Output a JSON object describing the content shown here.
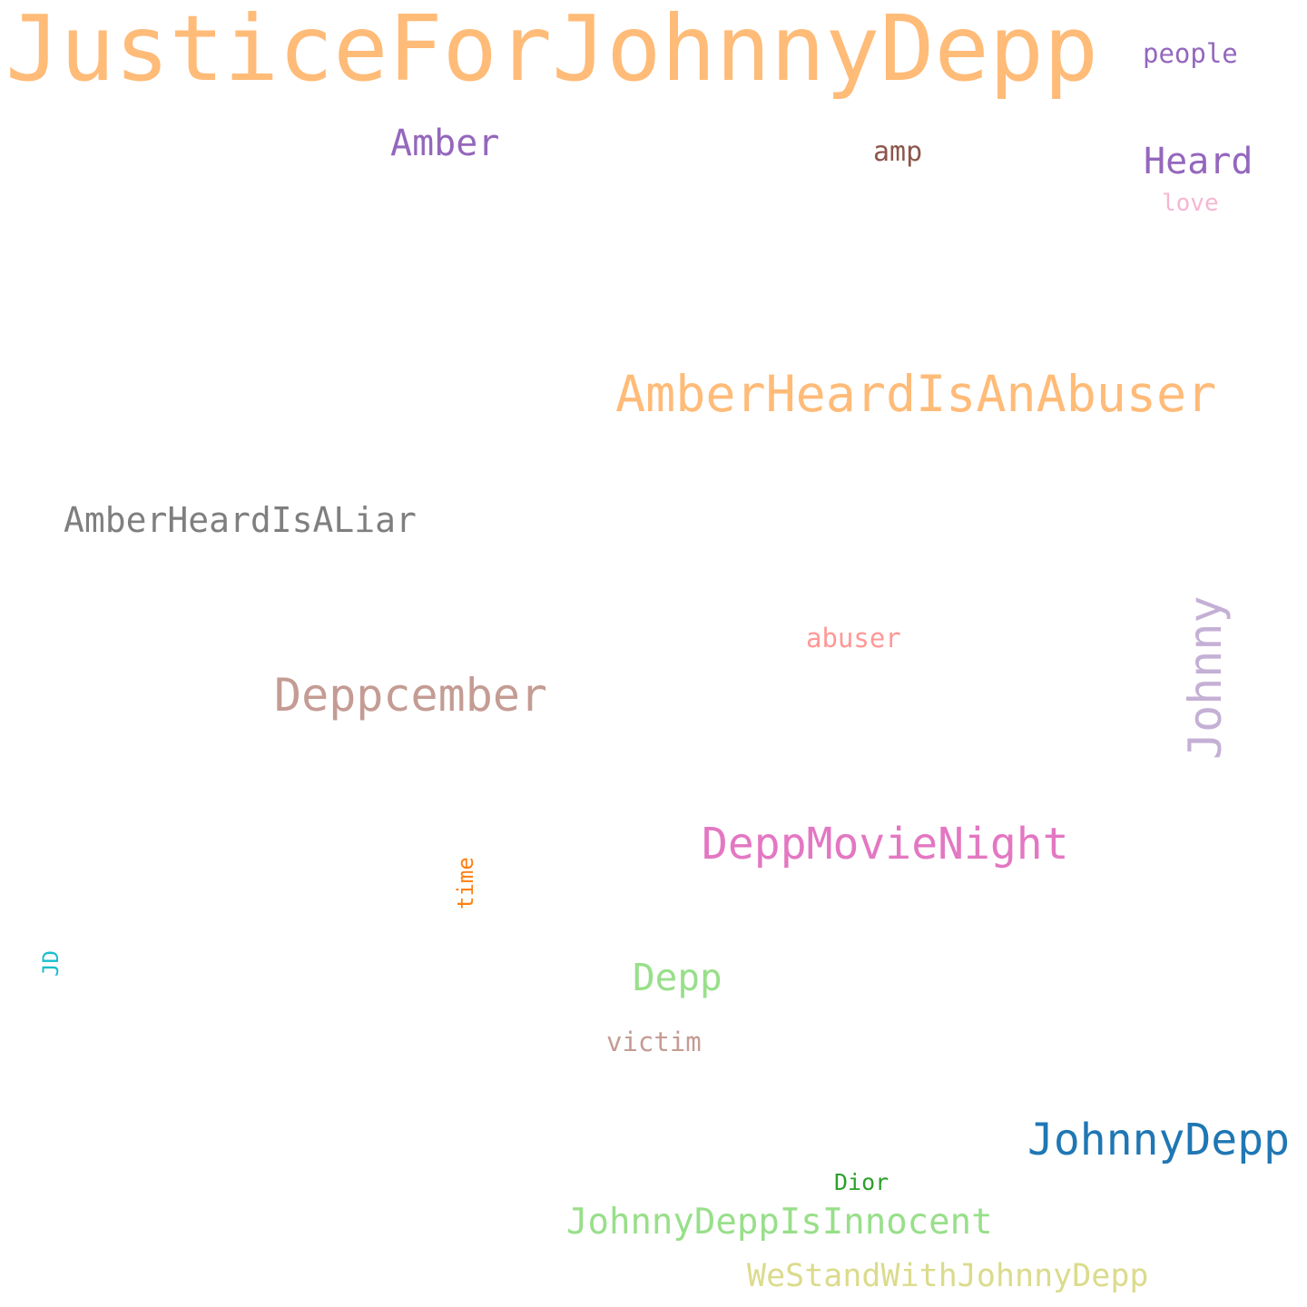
{
  "words": [
    {
      "id": "justice",
      "text": "JusticeForJohnnyDepp",
      "color": "#ffbb78"
    },
    {
      "id": "amberabuser",
      "text": "AmberHeardIsAnAbuser",
      "color": "#ffbb78"
    },
    {
      "id": "johnnydepp",
      "text": "JohnnyDepp",
      "color": "#1f77b4"
    },
    {
      "id": "deppmovienight",
      "text": "DeppMovieNight",
      "color": "#e377c2"
    },
    {
      "id": "deppcember",
      "text": "Deppcember",
      "color": "#c49c94"
    },
    {
      "id": "johnny",
      "text": "Johnny",
      "color": "#c5b0d5"
    },
    {
      "id": "innocent",
      "text": "JohnnyDeppIsInnocent",
      "color": "#98df8a"
    },
    {
      "id": "westand",
      "text": "WeStandWithJohnnyDepp",
      "color": "#dbdb8d"
    },
    {
      "id": "liar",
      "text": "AmberHeardIsALiar",
      "color": "#7f7f7f"
    },
    {
      "id": "amber",
      "text": "Amber",
      "color": "#9467bd"
    },
    {
      "id": "heard",
      "text": "Heard",
      "color": "#9467bd"
    },
    {
      "id": "depp",
      "text": "Depp",
      "color": "#98df8a"
    },
    {
      "id": "people",
      "text": "people",
      "color": "#9467bd"
    },
    {
      "id": "amp",
      "text": "amp",
      "color": "#8c564b"
    },
    {
      "id": "love",
      "text": "love",
      "color": "#f7b6d2"
    },
    {
      "id": "abuser",
      "text": "abuser",
      "color": "#ff9896"
    },
    {
      "id": "victim",
      "text": "victim",
      "color": "#c49c94"
    },
    {
      "id": "time",
      "text": "time",
      "color": "#ff7f0e"
    },
    {
      "id": "jd",
      "text": "JD",
      "color": "#17becf"
    },
    {
      "id": "dior",
      "text": "Dior",
      "color": "#2ca02c"
    }
  ]
}
